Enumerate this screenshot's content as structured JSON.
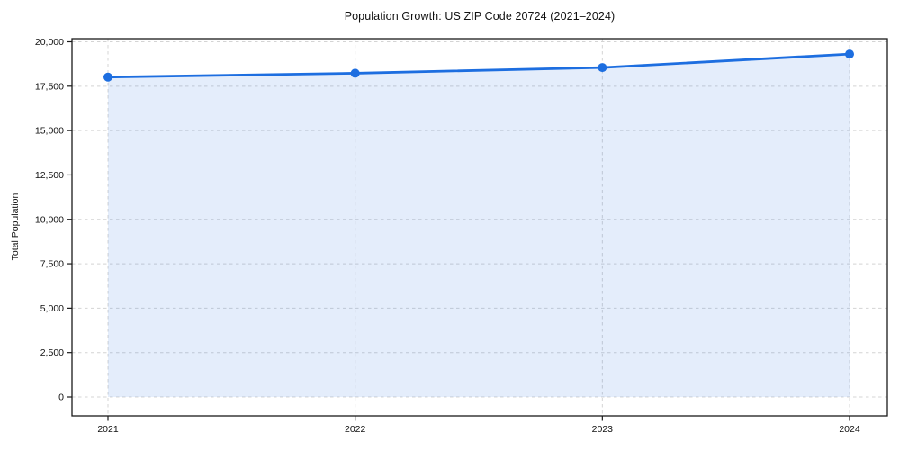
{
  "figure": {
    "title": "Population Growth: US ZIP Code 20724 (2021–2024)",
    "ylabel": "Total Population"
  },
  "chart_data": {
    "type": "area",
    "title": "Population Growth: US ZIP Code 20724 (2021–2024)",
    "xlabel": "",
    "ylabel": "Total Population",
    "categories": [
      "2021",
      "2022",
      "2023",
      "2024"
    ],
    "series": [
      {
        "name": "Total Population",
        "values": [
          18010,
          18230,
          18550,
          19310
        ]
      }
    ],
    "ylim": [
      0,
      20000
    ],
    "yticks": [
      0,
      2500,
      5000,
      7500,
      10000,
      12500,
      15000,
      17500,
      20000
    ],
    "grid": true,
    "grid_style": "dashed",
    "legend_position": "none",
    "line_color": "#1d6ee0",
    "fill_color": "rgba(29,110,224,0.12)",
    "grid_color": "#d4d4d4",
    "spine_color": "#1a1a1a",
    "marker": "circle"
  }
}
